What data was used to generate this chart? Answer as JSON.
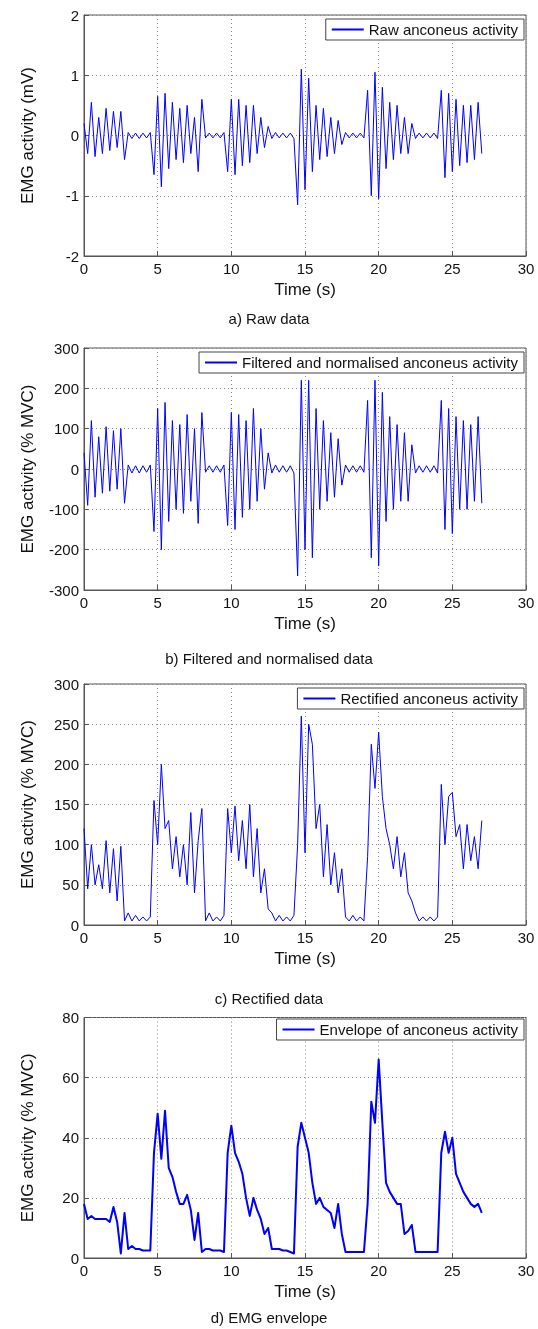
{
  "chart_data": [
    {
      "type": "line",
      "annotations": [
        "a) Raw data"
      ],
      "xlabel": "Time (s)",
      "ylabel": "EMG activity (mV)",
      "xlim": [
        0,
        30
      ],
      "xticks": [
        0,
        5,
        10,
        15,
        20,
        25,
        30
      ],
      "ylim": [
        -2,
        2
      ],
      "yticks": [
        -2,
        -1,
        0,
        1,
        2
      ],
      "grid": true,
      "legend": "top right",
      "marker": "none",
      "line_style": "solid",
      "x": [
        0,
        0.25,
        0.5,
        0.75,
        1,
        1.25,
        1.5,
        1.75,
        2,
        2.25,
        2.5,
        2.75,
        3,
        3.25,
        3.5,
        3.75,
        4,
        4.25,
        4.5,
        4.75,
        5,
        5.25,
        5.5,
        5.75,
        6,
        6.25,
        6.5,
        6.75,
        7,
        7.25,
        7.5,
        7.75,
        8,
        8.25,
        8.5,
        8.75,
        9,
        9.25,
        9.5,
        9.75,
        10,
        10.25,
        10.5,
        10.75,
        11,
        11.25,
        11.5,
        11.75,
        12,
        12.25,
        12.5,
        12.75,
        13,
        13.25,
        13.5,
        13.75,
        14,
        14.25,
        14.5,
        14.75,
        15,
        15.25,
        15.5,
        15.75,
        16,
        16.25,
        16.5,
        16.75,
        17,
        17.25,
        17.5,
        17.75,
        18,
        18.25,
        18.5,
        18.75,
        19,
        19.25,
        19.5,
        19.75,
        20,
        20.25,
        20.5,
        20.75,
        21,
        21.25,
        21.5,
        21.75,
        22,
        22.25,
        22.5,
        22.75,
        23,
        23.25,
        23.5,
        23.75,
        24,
        24.25,
        24.5,
        24.75,
        25,
        25.25,
        25.5,
        25.75,
        26,
        26.25,
        26.5,
        26.75,
        27
      ],
      "series": [
        {
          "name": "Raw anconeus activity",
          "color": "#0000ff",
          "values": [
            0.2,
            -0.3,
            0.55,
            -0.35,
            0.3,
            -0.3,
            0.45,
            -0.25,
            0.4,
            -0.2,
            0.4,
            -0.4,
            0.05,
            -0.05,
            0.04,
            -0.05,
            0.04,
            -0.04,
            0.05,
            -0.65,
            0.65,
            -0.85,
            0.7,
            -0.55,
            0.55,
            -0.4,
            0.45,
            -0.45,
            0.5,
            -0.3,
            0.3,
            -0.6,
            0.6,
            -0.04,
            0.04,
            -0.04,
            0.04,
            -0.04,
            0.05,
            -0.6,
            0.6,
            -0.65,
            0.6,
            -0.5,
            0.5,
            -0.45,
            0.5,
            -0.3,
            0.3,
            -0.2,
            0.15,
            -0.05,
            0.05,
            -0.04,
            0.04,
            -0.04,
            0.04,
            -0.05,
            -1.15,
            1.1,
            -0.9,
            0.95,
            -0.6,
            0.5,
            -0.4,
            0.45,
            -0.35,
            0.3,
            -0.3,
            0.25,
            -0.15,
            0.05,
            -0.04,
            0.04,
            -0.04,
            0.04,
            -0.04,
            0.75,
            -1,
            1.05,
            -1.05,
            0.8,
            -0.55,
            0.55,
            -0.4,
            0.5,
            -0.3,
            0.3,
            -0.3,
            0.2,
            -0.05,
            0.04,
            -0.04,
            0.04,
            -0.04,
            0.04,
            -0.05,
            0.75,
            -0.7,
            0.7,
            -0.6,
            0.6,
            -0.5,
            0.5,
            -0.45,
            0.5,
            -0.4,
            0.55,
            -0.3
          ]
        }
      ]
    },
    {
      "type": "line",
      "annotations": [
        "b) Filtered and normalised data"
      ],
      "xlabel": "Time (s)",
      "ylabel": "EMG activity (% MVC)",
      "xlim": [
        0,
        30
      ],
      "xticks": [
        0,
        5,
        10,
        15,
        20,
        25,
        30
      ],
      "ylim": [
        -300,
        300
      ],
      "yticks": [
        -300,
        -200,
        -100,
        0,
        100,
        200,
        300
      ],
      "grid": true,
      "legend": "top right",
      "marker": "none",
      "line_style": "solid",
      "x": [
        0,
        0.25,
        0.5,
        0.75,
        1,
        1.25,
        1.5,
        1.75,
        2,
        2.25,
        2.5,
        2.75,
        3,
        3.25,
        3.5,
        3.75,
        4,
        4.25,
        4.5,
        4.75,
        5,
        5.25,
        5.5,
        5.75,
        6,
        6.25,
        6.5,
        6.75,
        7,
        7.25,
        7.5,
        7.75,
        8,
        8.25,
        8.5,
        8.75,
        9,
        9.25,
        9.5,
        9.75,
        10,
        10.25,
        10.5,
        10.75,
        11,
        11.25,
        11.5,
        11.75,
        12,
        12.25,
        12.5,
        12.75,
        13,
        13.25,
        13.5,
        13.75,
        14,
        14.25,
        14.5,
        14.75,
        15,
        15.25,
        15.5,
        15.75,
        16,
        16.25,
        16.5,
        16.75,
        17,
        17.25,
        17.5,
        17.75,
        18,
        18.25,
        18.5,
        18.75,
        19,
        19.25,
        19.5,
        19.75,
        20,
        20.25,
        20.5,
        20.75,
        21,
        21.25,
        21.5,
        21.75,
        22,
        22.25,
        22.5,
        22.75,
        23,
        23.25,
        23.5,
        23.75,
        24,
        24.25,
        24.5,
        24.75,
        25,
        25.25,
        25.5,
        25.75,
        26,
        26.25,
        26.5,
        26.75,
        27
      ],
      "series": [
        {
          "name": "Filtered and normalised anconeus activity",
          "color": "#0000ff",
          "values": [
            40,
            -90,
            120,
            -70,
            80,
            -60,
            105,
            -55,
            95,
            -50,
            100,
            -85,
            10,
            -10,
            8,
            -10,
            8,
            -8,
            10,
            -155,
            150,
            -200,
            165,
            -130,
            120,
            -100,
            110,
            -110,
            135,
            -80,
            100,
            -135,
            140,
            -8,
            8,
            -8,
            8,
            -8,
            10,
            -140,
            140,
            -150,
            135,
            -120,
            120,
            -100,
            150,
            -80,
            100,
            -50,
            40,
            -10,
            10,
            -8,
            8,
            -8,
            8,
            -10,
            -265,
            220,
            -200,
            220,
            -220,
            150,
            -100,
            120,
            -80,
            90,
            -70,
            75,
            -40,
            10,
            -8,
            8,
            -8,
            8,
            -8,
            170,
            -220,
            220,
            -240,
            190,
            -130,
            130,
            -100,
            110,
            -80,
            90,
            -80,
            60,
            -10,
            8,
            -8,
            8,
            -8,
            8,
            -10,
            170,
            -150,
            150,
            -160,
            130,
            -100,
            120,
            -100,
            110,
            -80,
            130,
            -85
          ]
        }
      ]
    },
    {
      "type": "line",
      "annotations": [
        "c) Rectified data"
      ],
      "xlabel": "Time (s)",
      "ylabel": "EMG activity (% MVC)",
      "xlim": [
        0,
        30
      ],
      "xticks": [
        0,
        5,
        10,
        15,
        20,
        25,
        30
      ],
      "ylim": [
        0,
        300
      ],
      "yticks": [
        0,
        50,
        100,
        150,
        200,
        250,
        300
      ],
      "grid": true,
      "legend": "top right",
      "marker": "none",
      "line_style": "solid",
      "x": [
        0,
        0.25,
        0.5,
        0.75,
        1,
        1.25,
        1.5,
        1.75,
        2,
        2.25,
        2.5,
        2.75,
        3,
        3.25,
        3.5,
        3.75,
        4,
        4.25,
        4.5,
        4.75,
        5,
        5.25,
        5.5,
        5.75,
        6,
        6.25,
        6.5,
        6.75,
        7,
        7.25,
        7.5,
        7.75,
        8,
        8.25,
        8.5,
        8.75,
        9,
        9.25,
        9.5,
        9.75,
        10,
        10.25,
        10.5,
        10.75,
        11,
        11.25,
        11.5,
        11.75,
        12,
        12.25,
        12.5,
        12.75,
        13,
        13.25,
        13.5,
        13.75,
        14,
        14.25,
        14.5,
        14.75,
        15,
        15.25,
        15.5,
        15.75,
        16,
        16.25,
        16.5,
        16.75,
        17,
        17.25,
        17.5,
        17.75,
        18,
        18.25,
        18.5,
        18.75,
        19,
        19.25,
        19.5,
        19.75,
        20,
        20.25,
        20.5,
        20.75,
        21,
        21.25,
        21.5,
        21.75,
        22,
        22.25,
        22.5,
        22.75,
        23,
        23.25,
        23.5,
        23.75,
        24,
        24.25,
        24.5,
        24.75,
        25,
        25.25,
        25.5,
        25.75,
        26,
        26.25,
        26.5,
        26.75,
        27
      ],
      "series": [
        {
          "name": "Rectified anconeus activity",
          "color": "#0000ff",
          "values": [
            120,
            45,
            100,
            50,
            75,
            45,
            105,
            40,
            95,
            30,
            98,
            5,
            15,
            5,
            12,
            5,
            10,
            5,
            10,
            155,
            100,
            200,
            120,
            130,
            70,
            110,
            60,
            100,
            50,
            140,
            40,
            105,
            145,
            5,
            15,
            5,
            10,
            5,
            12,
            145,
            90,
            148,
            80,
            130,
            70,
            150,
            60,
            120,
            40,
            70,
            20,
            15,
            5,
            12,
            5,
            10,
            5,
            12,
            100,
            260,
            90,
            250,
            225,
            120,
            150,
            60,
            125,
            50,
            90,
            40,
            70,
            10,
            5,
            12,
            5,
            10,
            5,
            85,
            225,
            170,
            240,
            160,
            120,
            100,
            70,
            110,
            60,
            90,
            40,
            30,
            15,
            5,
            10,
            5,
            10,
            5,
            10,
            175,
            100,
            160,
            165,
            110,
            125,
            70,
            125,
            80,
            110,
            70,
            130
          ]
        }
      ]
    },
    {
      "type": "line",
      "annotations": [
        "d) EMG envelope"
      ],
      "xlabel": "Time (s)",
      "ylabel": "EMG activity (% MVC)",
      "xlim": [
        0,
        30
      ],
      "xticks": [
        0,
        5,
        10,
        15,
        20,
        25,
        30
      ],
      "ylim": [
        0,
        80
      ],
      "yticks": [
        0,
        20,
        40,
        60,
        80
      ],
      "grid": true,
      "legend": "top right",
      "marker": "none",
      "line_style": "solid",
      "x": [
        0,
        0.25,
        0.5,
        0.75,
        1,
        1.25,
        1.5,
        1.75,
        2,
        2.25,
        2.5,
        2.75,
        3,
        3.25,
        3.5,
        3.75,
        4,
        4.25,
        4.5,
        4.75,
        5,
        5.25,
        5.5,
        5.75,
        6,
        6.25,
        6.5,
        6.75,
        7,
        7.25,
        7.5,
        7.75,
        8,
        8.25,
        8.5,
        8.75,
        9,
        9.25,
        9.5,
        9.75,
        10,
        10.25,
        10.5,
        10.75,
        11,
        11.25,
        11.5,
        11.75,
        12,
        12.25,
        12.5,
        12.75,
        13,
        13.25,
        13.5,
        13.75,
        14,
        14.25,
        14.5,
        14.75,
        15,
        15.25,
        15.5,
        15.75,
        16,
        16.25,
        16.5,
        16.75,
        17,
        17.25,
        17.5,
        17.75,
        18,
        18.25,
        18.5,
        18.75,
        19,
        19.25,
        19.5,
        19.75,
        20,
        20.25,
        20.5,
        20.75,
        21,
        21.25,
        21.5,
        21.75,
        22,
        22.25,
        22.5,
        22.75,
        23,
        23.25,
        23.5,
        23.75,
        24,
        24.25,
        24.5,
        24.75,
        25,
        25.25,
        25.5,
        25.75,
        26,
        26.25,
        26.5,
        26.75,
        27
      ],
      "series": [
        {
          "name": "Envelope of anconeus activity",
          "color": "#0000ff",
          "values": [
            18,
            13,
            14,
            13,
            13,
            13,
            13,
            12,
            17,
            12,
            1.5,
            15,
            3,
            4,
            3,
            3,
            2.5,
            2.5,
            2.5,
            35,
            48,
            33,
            49,
            30,
            27,
            22,
            18,
            18,
            21,
            16,
            6,
            15,
            2,
            3,
            3,
            2.5,
            2.5,
            2.5,
            2,
            35,
            44,
            35,
            32,
            28,
            20,
            14,
            20,
            16,
            13,
            8,
            10,
            3,
            3,
            3,
            2.5,
            2.5,
            2,
            1.5,
            37,
            45,
            40,
            35,
            25,
            18,
            20,
            17,
            16,
            15,
            10,
            18,
            8,
            2,
            2,
            2,
            2,
            2,
            2,
            18,
            52,
            45,
            66,
            45,
            25,
            22,
            20,
            18,
            18,
            8,
            9,
            11,
            2,
            2,
            2,
            2,
            2,
            2,
            2,
            35,
            42,
            35,
            40,
            28,
            25,
            22,
            20,
            18,
            17,
            18,
            15
          ]
        }
      ]
    }
  ]
}
